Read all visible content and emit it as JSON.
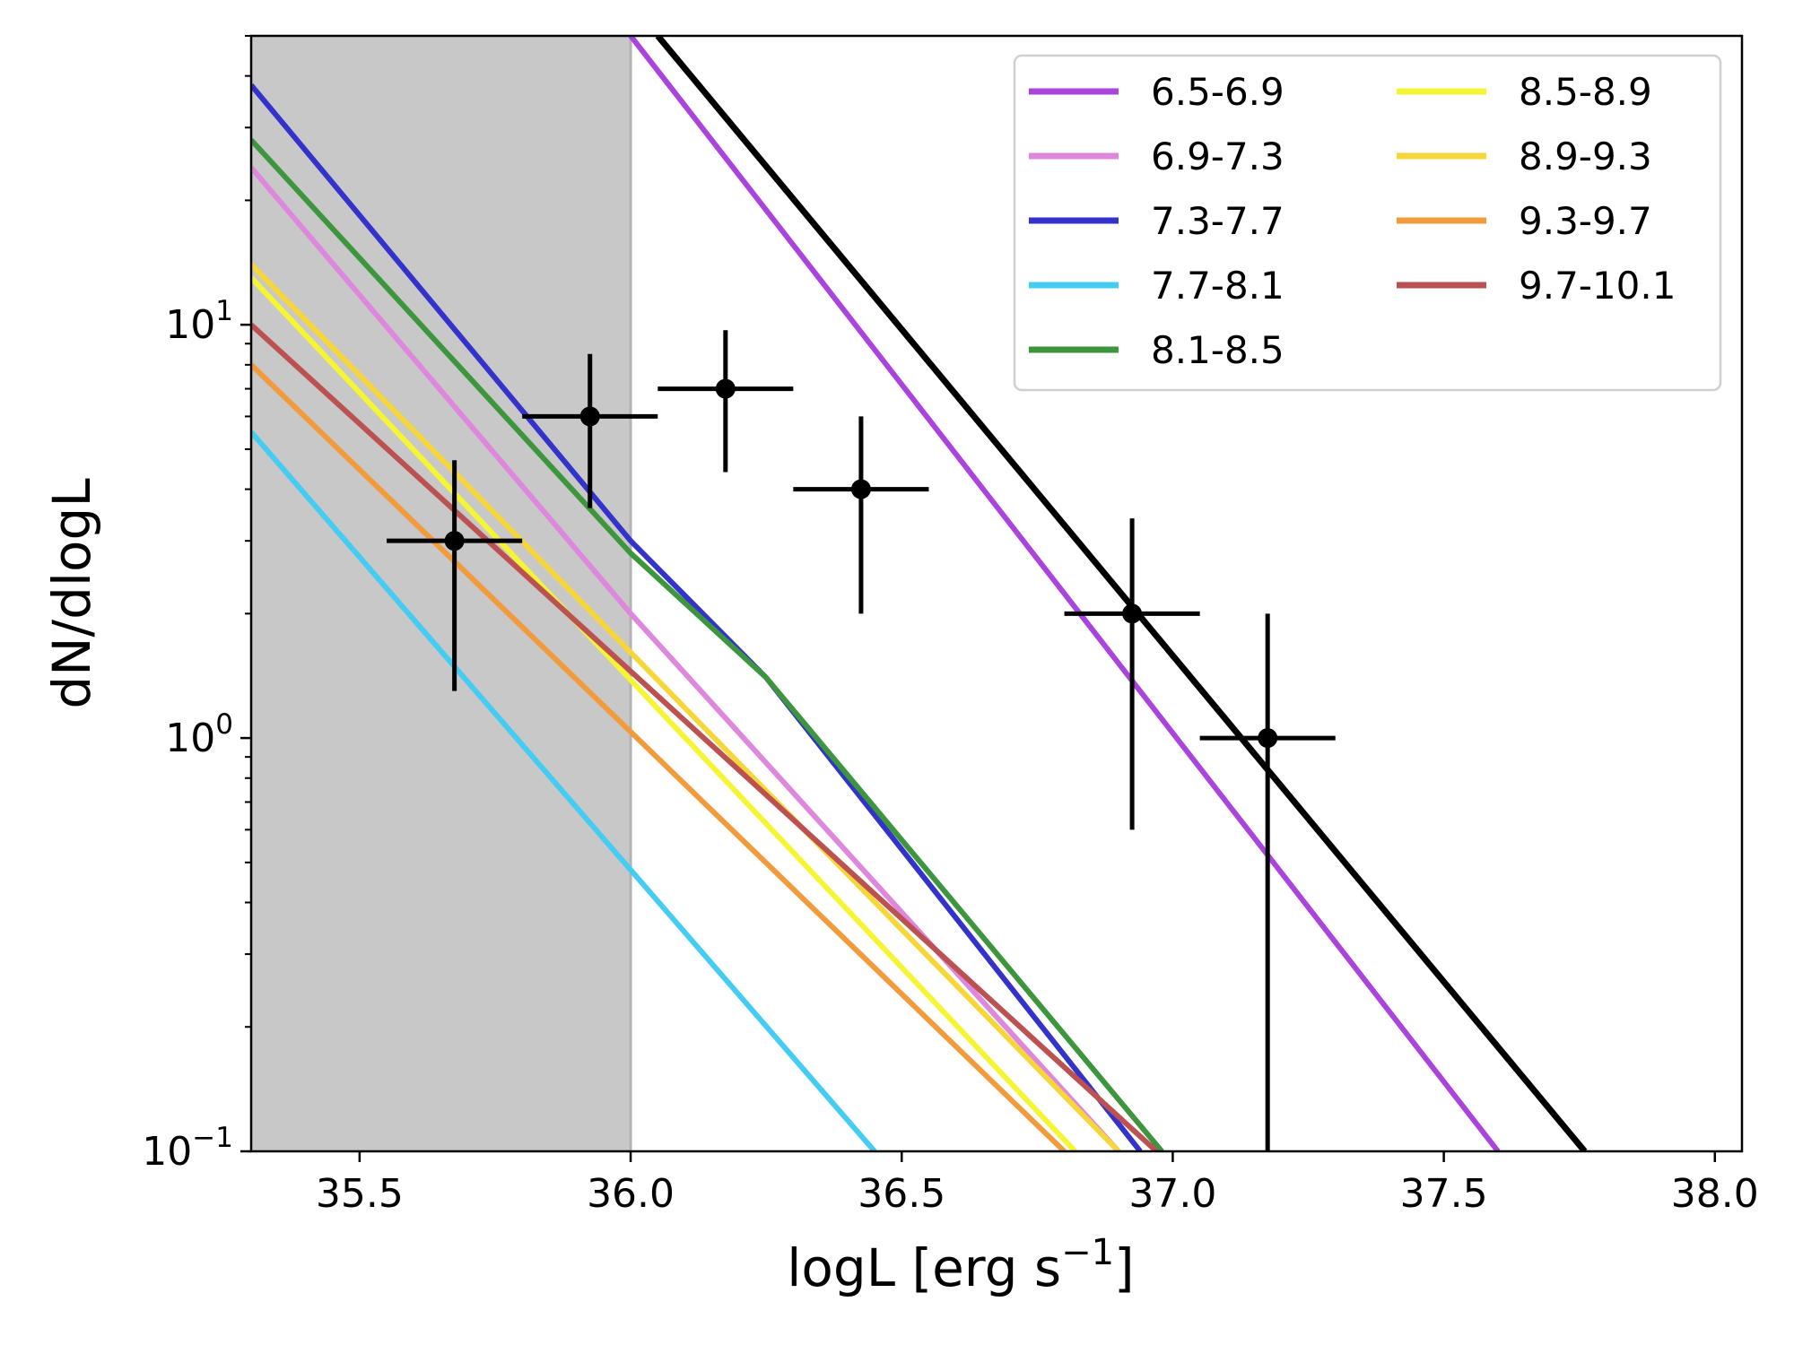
{
  "chart_data": {
    "type": "line",
    "title": "",
    "xlabel": "logL [erg s",
    "xlabel_sup": "−1",
    "xlabel_end": "]",
    "ylabel": "dN/dlogL",
    "xlim": [
      35.3,
      38.05
    ],
    "ylim": [
      0.1,
      50
    ],
    "yscale": "log",
    "x_ticks": [
      {
        "value": 35.5,
        "label": "35.5"
      },
      {
        "value": 36.0,
        "label": "36.0"
      },
      {
        "value": 36.5,
        "label": "36.5"
      },
      {
        "value": 37.0,
        "label": "37.0"
      },
      {
        "value": 37.5,
        "label": "37.5"
      },
      {
        "value": 38.0,
        "label": "38.0"
      }
    ],
    "y_ticks": [
      {
        "value": 0.1,
        "base": "10",
        "exp": "−1"
      },
      {
        "value": 1,
        "base": "10",
        "exp": "0"
      },
      {
        "value": 10,
        "base": "10",
        "exp": "1"
      }
    ],
    "shaded_region": {
      "x": [
        35.3,
        36.0
      ],
      "color": "#c8c8c8"
    },
    "legend_position": "top-right",
    "series": [
      {
        "name": "6.5-6.9",
        "color": "#aa44dd",
        "x": [
          36.0,
          37.6
        ],
        "y": [
          50,
          0.1
        ]
      },
      {
        "name": "6.9-7.3",
        "color": "#dd88dd",
        "x": [
          35.3,
          36.0,
          36.9
        ],
        "y": [
          24,
          2.0,
          0.1
        ]
      },
      {
        "name": "7.3-7.7",
        "color": "#3333cc",
        "x": [
          35.3,
          36.0,
          36.25,
          36.94
        ],
        "y": [
          38,
          3.0,
          1.4,
          0.1
        ]
      },
      {
        "name": "7.7-8.1",
        "color": "#44ccf2",
        "x": [
          35.3,
          36.45
        ],
        "y": [
          5.5,
          0.1
        ]
      },
      {
        "name": "8.1-8.5",
        "color": "#3d963d",
        "x": [
          35.3,
          36.0,
          36.25,
          36.98
        ],
        "y": [
          28,
          2.8,
          1.4,
          0.1
        ]
      },
      {
        "name": "8.5-8.9",
        "color": "#f5f534",
        "x": [
          35.3,
          36.82
        ],
        "y": [
          13,
          0.1
        ]
      },
      {
        "name": "8.9-9.3",
        "color": "#f7d63a",
        "x": [
          35.3,
          36.9
        ],
        "y": [
          14,
          0.1
        ]
      },
      {
        "name": "9.3-9.7",
        "color": "#f29b3c",
        "x": [
          35.3,
          36.8
        ],
        "y": [
          8,
          0.1
        ]
      },
      {
        "name": "9.7-10.1",
        "color": "#bc5151",
        "x": [
          35.3,
          36.97
        ],
        "y": [
          10,
          0.1
        ]
      },
      {
        "name": "",
        "color": "#000000",
        "x": [
          36.05,
          37.76
        ],
        "y": [
          50,
          0.1
        ],
        "thick": true
      }
    ],
    "points": [
      {
        "x": 35.675,
        "y": 3,
        "xerr": 0.125,
        "ylo": 1.3,
        "yhi": 4.7
      },
      {
        "x": 35.925,
        "y": 6,
        "xerr": 0.125,
        "ylo": 3.6,
        "yhi": 8.5
      },
      {
        "x": 36.175,
        "y": 7,
        "xerr": 0.125,
        "ylo": 4.4,
        "yhi": 9.7
      },
      {
        "x": 36.425,
        "y": 4,
        "xerr": 0.125,
        "ylo": 2.0,
        "yhi": 6.0
      },
      {
        "x": 36.925,
        "y": 2,
        "xerr": 0.125,
        "ylo": 0.6,
        "yhi": 3.4
      },
      {
        "x": 37.175,
        "y": 1,
        "xerr": 0.125,
        "ylo": 0.1,
        "yhi": 2.0
      }
    ]
  }
}
